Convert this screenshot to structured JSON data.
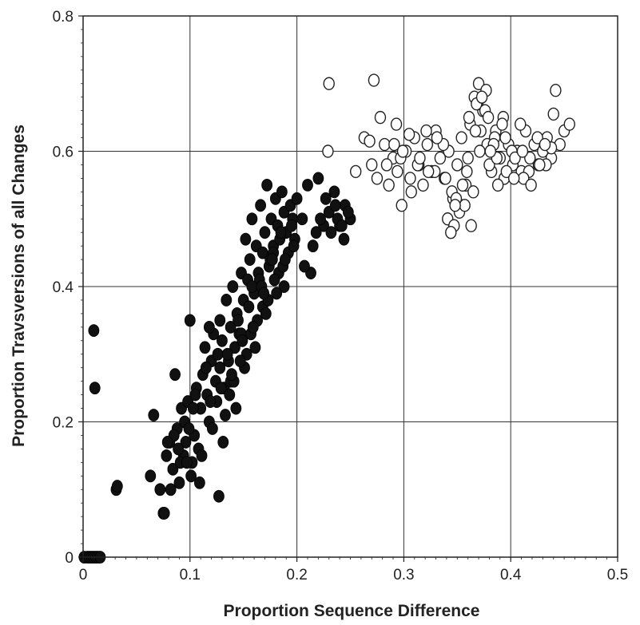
{
  "chart_data": {
    "type": "scatter",
    "title": "",
    "xlabel": "Proportion Sequence Difference",
    "ylabel": "Proportion Travsversions of all Changes",
    "xlim": [
      0,
      0.5
    ],
    "ylim": [
      0,
      0.8
    ],
    "xticks": [
      0,
      0.1,
      0.2,
      0.3,
      0.4,
      0.5
    ],
    "xtick_labels": [
      "0",
      "0.1",
      "0.2",
      "0.3",
      "0.4",
      "0.5"
    ],
    "yticks": [
      0,
      0.2,
      0.4,
      0.6,
      0.8
    ],
    "ytick_labels": [
      "0",
      "0.2",
      "0.4",
      "0.6",
      "0.8"
    ],
    "grid": true,
    "legend": "none",
    "colors": {
      "filled_marker": "#111111",
      "open_marker_fill": "#ffffff",
      "open_marker_edge": "#222222",
      "grid": "#333333"
    },
    "series": [
      {
        "marker": "filled-circle",
        "x": [
          0.001,
          0.004,
          0.006,
          0.008,
          0.01,
          0.012,
          0.014,
          0.016,
          0.01,
          0.011,
          0.031,
          0.032,
          0.063,
          0.066,
          0.072,
          0.075,
          0.078,
          0.081,
          0.084,
          0.086,
          0.088,
          0.09,
          0.092,
          0.094,
          0.096,
          0.098,
          0.1,
          0.102,
          0.104,
          0.106,
          0.108,
          0.11,
          0.112,
          0.114,
          0.116,
          0.118,
          0.12,
          0.122,
          0.124,
          0.126,
          0.128,
          0.13,
          0.132,
          0.134,
          0.136,
          0.138,
          0.14,
          0.142,
          0.144,
          0.146,
          0.148,
          0.15,
          0.152,
          0.154,
          0.156,
          0.158,
          0.16,
          0.162,
          0.164,
          0.166,
          0.168,
          0.17,
          0.172,
          0.174,
          0.176,
          0.178,
          0.18,
          0.182,
          0.184,
          0.186,
          0.188,
          0.19,
          0.192,
          0.194,
          0.196,
          0.198,
          0.2,
          0.205,
          0.21,
          0.215,
          0.22,
          0.225,
          0.23,
          0.235,
          0.24,
          0.245,
          0.25,
          0.085,
          0.095,
          0.105,
          0.115,
          0.125,
          0.135,
          0.145,
          0.155,
          0.165,
          0.175,
          0.185,
          0.195,
          0.118,
          0.128,
          0.138,
          0.148,
          0.158,
          0.168,
          0.178,
          0.188,
          0.133,
          0.143,
          0.153,
          0.163,
          0.173,
          0.183,
          0.091,
          0.101,
          0.111,
          0.121,
          0.131,
          0.141,
          0.151,
          0.161,
          0.171,
          0.181,
          0.227,
          0.232,
          0.238,
          0.244,
          0.248,
          0.076,
          0.082,
          0.097,
          0.103,
          0.109,
          0.127,
          0.137,
          0.147,
          0.157,
          0.167,
          0.177,
          0.187,
          0.197,
          0.213,
          0.218,
          0.079,
          0.089,
          0.099,
          0.119,
          0.129,
          0.139,
          0.149,
          0.159,
          0.169,
          0.179,
          0.189,
          0.207,
          0.222,
          0.236,
          0.242
        ],
        "y": [
          0.0,
          0.0,
          0.0,
          0.0,
          0.0,
          0.0,
          0.0,
          0.0,
          0.335,
          0.25,
          0.1,
          0.105,
          0.12,
          0.21,
          0.1,
          0.065,
          0.15,
          0.17,
          0.13,
          0.27,
          0.19,
          0.11,
          0.22,
          0.15,
          0.17,
          0.23,
          0.35,
          0.14,
          0.18,
          0.25,
          0.16,
          0.22,
          0.27,
          0.31,
          0.24,
          0.2,
          0.29,
          0.33,
          0.26,
          0.3,
          0.35,
          0.32,
          0.25,
          0.38,
          0.29,
          0.34,
          0.4,
          0.31,
          0.36,
          0.33,
          0.42,
          0.38,
          0.47,
          0.41,
          0.44,
          0.5,
          0.39,
          0.46,
          0.42,
          0.52,
          0.45,
          0.48,
          0.55,
          0.43,
          0.5,
          0.46,
          0.53,
          0.49,
          0.47,
          0.54,
          0.51,
          0.48,
          0.45,
          0.52,
          0.5,
          0.47,
          0.53,
          0.5,
          0.55,
          0.46,
          0.56,
          0.49,
          0.51,
          0.54,
          0.49,
          0.52,
          0.5,
          0.18,
          0.2,
          0.24,
          0.28,
          0.23,
          0.3,
          0.35,
          0.37,
          0.41,
          0.44,
          0.48,
          0.49,
          0.34,
          0.28,
          0.26,
          0.33,
          0.4,
          0.37,
          0.45,
          0.4,
          0.21,
          0.22,
          0.3,
          0.35,
          0.38,
          0.42,
          0.14,
          0.12,
          0.15,
          0.19,
          0.17,
          0.26,
          0.28,
          0.31,
          0.36,
          0.39,
          0.53,
          0.48,
          0.5,
          0.47,
          0.51,
          0.065,
          0.1,
          0.14,
          0.22,
          0.11,
          0.09,
          0.24,
          0.29,
          0.33,
          0.4,
          0.44,
          0.43,
          0.46,
          0.42,
          0.48,
          0.17,
          0.16,
          0.19,
          0.23,
          0.25,
          0.27,
          0.32,
          0.34,
          0.39,
          0.41,
          0.44,
          0.43,
          0.5,
          0.52,
          0.49
        ]
      },
      {
        "marker": "open-circle",
        "x": [
          0.23,
          0.229,
          0.255,
          0.263,
          0.27,
          0.275,
          0.278,
          0.282,
          0.286,
          0.29,
          0.294,
          0.298,
          0.302,
          0.306,
          0.31,
          0.314,
          0.318,
          0.322,
          0.326,
          0.33,
          0.334,
          0.338,
          0.342,
          0.346,
          0.35,
          0.354,
          0.358,
          0.362,
          0.366,
          0.37,
          0.374,
          0.378,
          0.382,
          0.386,
          0.39,
          0.394,
          0.398,
          0.402,
          0.406,
          0.41,
          0.414,
          0.418,
          0.422,
          0.426,
          0.43,
          0.434,
          0.438,
          0.442,
          0.446,
          0.45,
          0.455,
          0.44,
          0.438,
          0.272,
          0.268,
          0.293,
          0.297,
          0.305,
          0.313,
          0.321,
          0.329,
          0.337,
          0.345,
          0.353,
          0.361,
          0.369,
          0.377,
          0.385,
          0.393,
          0.401,
          0.409,
          0.417,
          0.425,
          0.433,
          0.341,
          0.347,
          0.352,
          0.357,
          0.363,
          0.365,
          0.368,
          0.372,
          0.376,
          0.38,
          0.384,
          0.388,
          0.392,
          0.396,
          0.404,
          0.412,
          0.284,
          0.291,
          0.299,
          0.307,
          0.315,
          0.323,
          0.331,
          0.339,
          0.349,
          0.359,
          0.371,
          0.379,
          0.387,
          0.395,
          0.403,
          0.411,
          0.419,
          0.427,
          0.432,
          0.344,
          0.348,
          0.355,
          0.36,
          0.367,
          0.373,
          0.381
        ],
        "y": [
          0.7,
          0.6,
          0.57,
          0.62,
          0.58,
          0.56,
          0.65,
          0.61,
          0.55,
          0.59,
          0.57,
          0.52,
          0.6,
          0.56,
          0.62,
          0.58,
          0.55,
          0.61,
          0.57,
          0.63,
          0.59,
          0.56,
          0.6,
          0.53,
          0.58,
          0.62,
          0.55,
          0.64,
          0.68,
          0.7,
          0.66,
          0.61,
          0.57,
          0.63,
          0.59,
          0.56,
          0.61,
          0.58,
          0.6,
          0.57,
          0.63,
          0.59,
          0.61,
          0.58,
          0.6,
          0.62,
          0.59,
          0.69,
          0.61,
          0.63,
          0.64,
          0.655,
          0.605,
          0.705,
          0.615,
          0.64,
          0.59,
          0.625,
          0.58,
          0.63,
          0.57,
          0.61,
          0.54,
          0.52,
          0.65,
          0.67,
          0.69,
          0.62,
          0.65,
          0.6,
          0.64,
          0.57,
          0.62,
          0.58,
          0.5,
          0.49,
          0.51,
          0.52,
          0.49,
          0.54,
          0.67,
          0.63,
          0.66,
          0.58,
          0.61,
          0.55,
          0.64,
          0.57,
          0.59,
          0.56,
          0.58,
          0.61,
          0.6,
          0.54,
          0.59,
          0.57,
          0.62,
          0.56,
          0.53,
          0.57,
          0.6,
          0.65,
          0.59,
          0.62,
          0.56,
          0.6,
          0.55,
          0.58,
          0.61,
          0.48,
          0.52,
          0.55,
          0.59,
          0.63,
          0.68,
          0.6
        ]
      }
    ]
  }
}
